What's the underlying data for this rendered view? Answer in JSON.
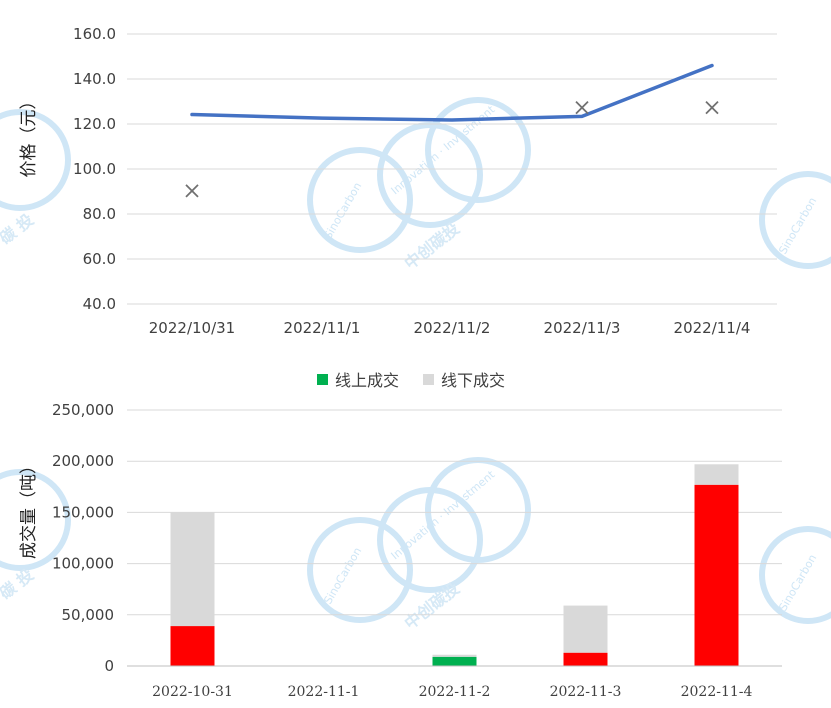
{
  "chart_data": [
    {
      "type": "line",
      "title": "",
      "ylabel": "价格（元）",
      "xlabel": "",
      "ylim": [
        40,
        160
      ],
      "yticks": [
        "160.0",
        "140.0",
        "120.0",
        "100.0",
        "80.0",
        "60.0",
        "40.0"
      ],
      "categories": [
        "2022/10/31",
        "2022/11/1",
        "2022/11/2",
        "2022/11/3",
        "2022/11/4"
      ],
      "grid": true,
      "series": [
        {
          "type": "line",
          "color": "#4472c4",
          "values": [
            124.2,
            122.6,
            121.8,
            123.4,
            146.0
          ]
        },
        {
          "type": "scatter",
          "marker": "x",
          "color": "#707070",
          "values": [
            90.3,
            null,
            null,
            127.3,
            127.3
          ]
        }
      ]
    },
    {
      "type": "bar",
      "stacked": true,
      "title": "",
      "ylabel": "成交量（吨）",
      "xlabel": "",
      "ylim": [
        0,
        250000
      ],
      "yticks": [
        "250,000",
        "200,000",
        "150,000",
        "100,000",
        "50,000",
        "0"
      ],
      "categories": [
        "2022-10-31",
        "2022-11-1",
        "2022-11-2",
        "2022-11-3",
        "2022-11-4"
      ],
      "legend_position": "top",
      "grid": true,
      "series": [
        {
          "color": "#ff0000",
          "values": [
            39000,
            0,
            0,
            13000,
            177000
          ]
        },
        {
          "name": "线上成交",
          "color": "#00b050",
          "values": [
            0,
            0,
            9000,
            0,
            0
          ]
        },
        {
          "name": "线下成交",
          "color": "#d9d9d9",
          "values": [
            111000,
            0,
            2000,
            46000,
            20000
          ]
        }
      ]
    }
  ],
  "watermark": {
    "brand_en": "SinoCarbon",
    "tag_en": "Innovation · Investment",
    "brand_cn": "中创碳投",
    "fragment_cn": "碳 投",
    "color": "#cfe6f6"
  }
}
